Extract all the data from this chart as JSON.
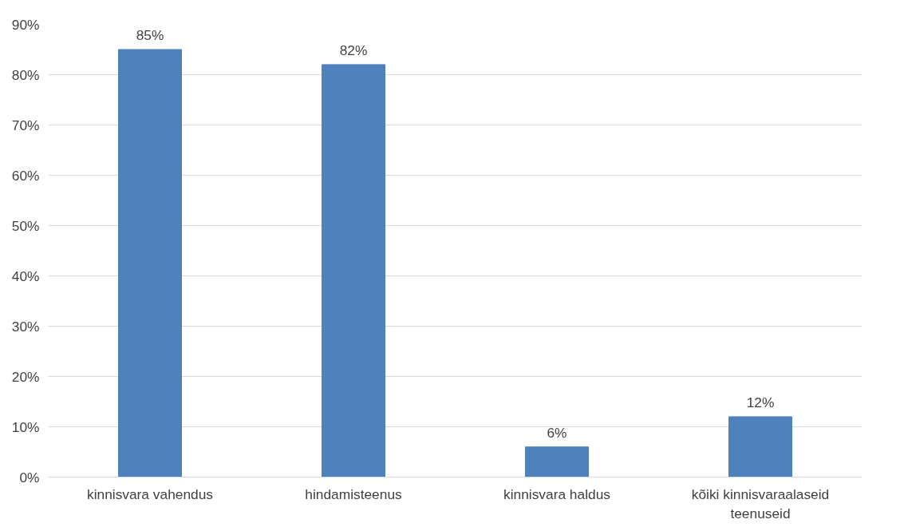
{
  "chart_data": {
    "type": "bar",
    "categories": [
      "kinnisvara vahendus",
      "hindamisteenus",
      "kinnisvara haldus",
      "kõiki kinnisvaraalaseid teenuseid"
    ],
    "values": [
      85,
      82,
      6,
      12
    ],
    "value_labels": [
      "85%",
      "82%",
      "6%",
      "12%"
    ],
    "color": "#4f81bd",
    "ylim": [
      0,
      90
    ],
    "yticks": [
      {
        "value": 0,
        "label": "0%"
      },
      {
        "value": 10,
        "label": "10%"
      },
      {
        "value": 20,
        "label": "20%"
      },
      {
        "value": 30,
        "label": "30%"
      },
      {
        "value": 40,
        "label": "40%"
      },
      {
        "value": 50,
        "label": "50%"
      },
      {
        "value": 60,
        "label": "60%"
      },
      {
        "value": 70,
        "label": "70%"
      },
      {
        "value": 80,
        "label": "80%"
      },
      {
        "value": 90,
        "label": "90%"
      }
    ],
    "grid": "y"
  }
}
